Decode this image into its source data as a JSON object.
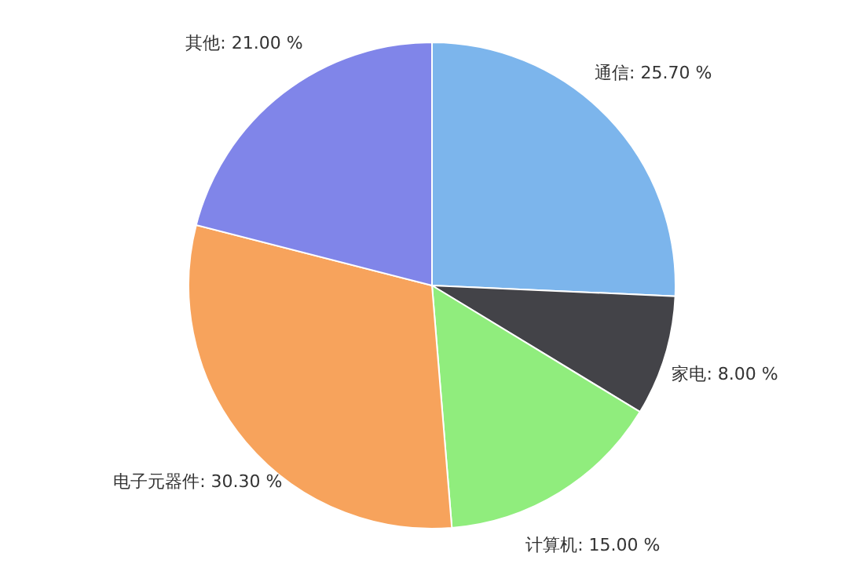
{
  "chart_data": {
    "type": "pie",
    "categories": [
      "通信",
      "家电",
      "计算机",
      "电子元器件",
      "其他"
    ],
    "values": [
      25.7,
      8.0,
      15.0,
      30.3,
      21.0
    ],
    "value_labels": [
      "25.70 %",
      "8.00 %",
      "15.00 %",
      "30.30 %",
      "21.00 %"
    ],
    "colors": [
      "#7cb5ec",
      "#434348",
      "#90ed7d",
      "#f7a35c",
      "#8085e9"
    ]
  }
}
